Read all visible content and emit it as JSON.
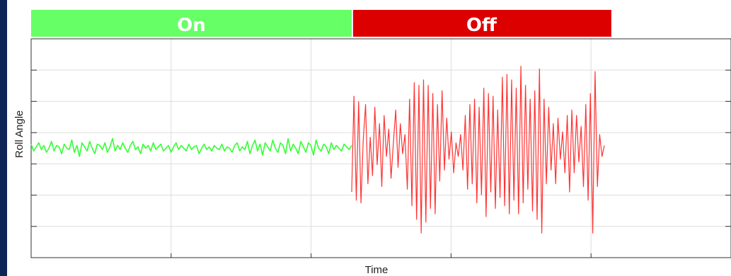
{
  "chart_data": {
    "type": "line",
    "xlabel": "Time",
    "ylabel": "Roll Angle",
    "xlim": [
      0,
      1000
    ],
    "ylim": [
      -4,
      4
    ],
    "grid": true,
    "tick_labels_shown": false,
    "bands": [
      {
        "label": "On",
        "x_start": 0,
        "x_end": 458,
        "color": "#66ff66"
      },
      {
        "label": "Off",
        "x_start": 458,
        "x_end": 829,
        "color": "#dd0000"
      }
    ],
    "series": [
      {
        "state": "On",
        "color": "#33ff33",
        "x_range": [
          0,
          458
        ],
        "values": [
          0.15,
          -0.1,
          0.05,
          0.2,
          -0.05,
          0.1,
          -0.15,
          0.0,
          0.25,
          -0.1,
          0.1,
          0.05,
          -0.2,
          0.15,
          0.0,
          -0.05,
          0.3,
          -0.15,
          0.1,
          -0.3,
          0.2,
          0.05,
          -0.1,
          0.25,
          0.0,
          -0.2,
          0.15,
          0.1,
          -0.05,
          0.2,
          -0.15,
          0.05,
          0.35,
          -0.1,
          0.1,
          -0.05,
          0.2,
          0.0,
          -0.15,
          0.1,
          0.25,
          -0.05,
          0.05,
          -0.2,
          0.15,
          0.0,
          0.1,
          -0.1,
          0.2,
          -0.05,
          0.05,
          0.15,
          -0.1,
          0.0,
          0.1,
          -0.15,
          0.05,
          0.2,
          -0.05,
          0.1,
          0.0,
          -0.1,
          0.15,
          -0.05,
          0.05,
          0.1,
          -0.2,
          0.0,
          0.15,
          -0.05,
          0.05,
          -0.1,
          0.1,
          0.0,
          -0.05,
          0.15,
          -0.1,
          0.05,
          0.0,
          -0.15,
          0.1,
          0.2,
          -0.1,
          0.05,
          -0.05,
          0.25,
          -0.2,
          0.1,
          0.3,
          -0.1,
          0.15,
          -0.25,
          0.2,
          0.05,
          -0.1,
          0.3,
          0.0,
          -0.15,
          0.2,
          0.1,
          -0.2,
          0.35,
          -0.1,
          0.15,
          0.0,
          -0.2,
          0.25,
          0.05,
          -0.15,
          0.2,
          0.1,
          -0.25,
          0.3,
          0.0,
          -0.1,
          0.15,
          0.05,
          -0.2,
          0.2,
          -0.05,
          0.1,
          0.0,
          -0.1,
          0.15,
          0.05,
          -0.05,
          0.1
        ]
      },
      {
        "state": "Off",
        "color": "#ff3333",
        "x_range": [
          458,
          819
        ],
        "values": [
          -1.6,
          1.9,
          -1.9,
          1.7,
          -2.0,
          0.3,
          1.6,
          -1.3,
          0.4,
          -1.0,
          1.5,
          -0.6,
          0.9,
          -1.4,
          1.2,
          -0.3,
          0.7,
          -1.1,
          0.2,
          1.4,
          -0.7,
          0.9,
          -0.2,
          0.5,
          -1.5,
          1.8,
          -2.1,
          2.4,
          -2.6,
          2.3,
          -3.1,
          2.5,
          -2.7,
          2.3,
          -2.2,
          2.0,
          -2.4,
          1.6,
          -1.2,
          2.1,
          -0.8,
          1.1,
          -0.4,
          0.6,
          -0.9,
          0.2,
          -0.3,
          0.5,
          -0.8,
          1.2,
          -1.5,
          1.6,
          -1.3,
          1.8,
          -2.0,
          1.5,
          -1.7,
          2.2,
          -2.5,
          2.0,
          -1.6,
          1.9,
          -2.2,
          1.4,
          -1.8,
          2.6,
          -2.1,
          2.7,
          -2.4,
          2.5,
          -1.9,
          2.2,
          -2.4,
          3.0,
          -2.0,
          2.3,
          -1.5,
          1.8,
          -2.3,
          2.1,
          -2.6,
          2.9,
          -3.1,
          1.8,
          -1.3,
          1.5,
          -0.8,
          0.9,
          -1.3,
          1.1,
          -0.4,
          0.6,
          -0.9,
          1.2,
          -1.6,
          1.4,
          -0.9,
          1.2,
          -0.5,
          0.8,
          -1.4,
          1.6,
          -1.9,
          2.0,
          -3.1,
          2.8,
          -1.4,
          0.5,
          -0.3,
          0.1
        ]
      }
    ]
  }
}
